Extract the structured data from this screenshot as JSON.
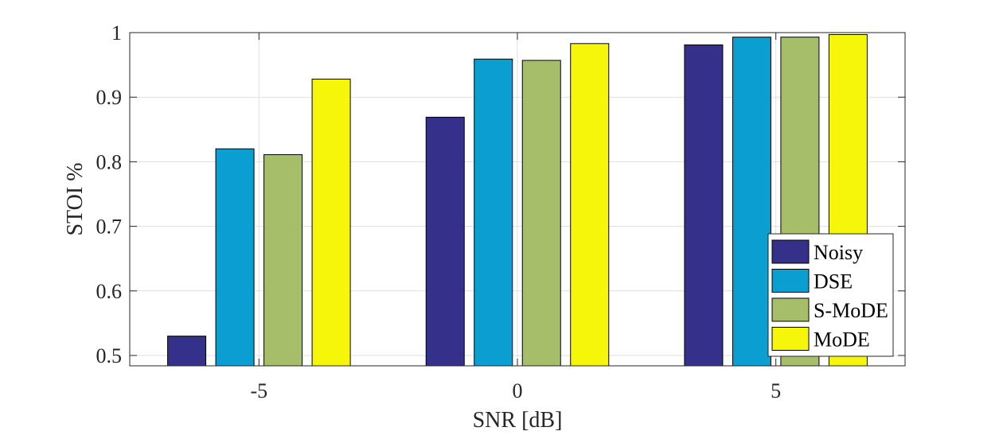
{
  "chart_data": {
    "type": "bar",
    "categories": [
      "-5",
      "0",
      "5"
    ],
    "series": [
      {
        "name": "Noisy",
        "values": [
          0.53,
          0.869,
          0.981
        ],
        "color": "#35308a"
      },
      {
        "name": "DSE",
        "values": [
          0.82,
          0.959,
          0.993
        ],
        "color": "#0b9ed1"
      },
      {
        "name": "S-MoDE",
        "values": [
          0.811,
          0.957,
          0.993
        ],
        "color": "#a6be6a"
      },
      {
        "name": "MoDE",
        "values": [
          0.928,
          0.983,
          0.997
        ],
        "color": "#f6f60a"
      }
    ],
    "xlabel": "SNR [dB]",
    "ylabel": "STOI  %",
    "ylim": [
      0.484,
      1.0
    ],
    "yticks": [
      "0.5",
      "0.6",
      "0.7",
      "0.8",
      "0.9",
      "1"
    ],
    "grid": true,
    "legend_position": "bottom-right"
  }
}
